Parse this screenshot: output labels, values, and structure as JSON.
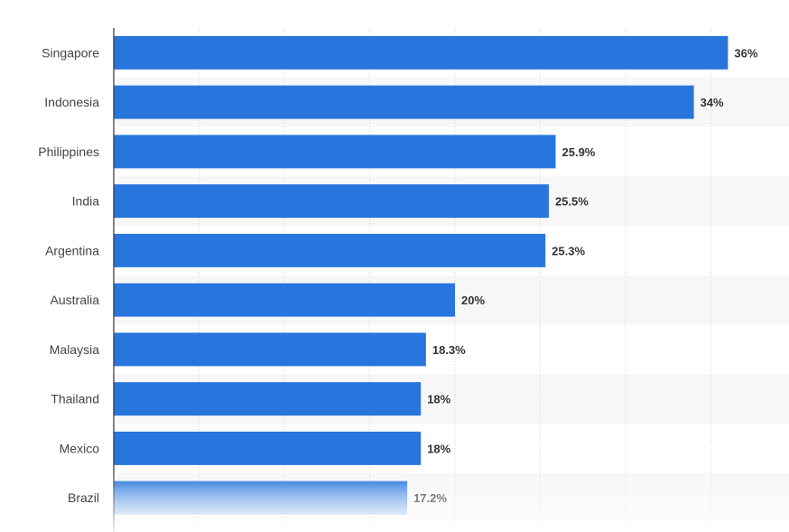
{
  "colors": {
    "bar": "#2876dd",
    "band": "#f7f7f7",
    "grid": "#d4d4d4",
    "axis": "#333333"
  },
  "chart_data": {
    "type": "bar",
    "orientation": "horizontal",
    "categories": [
      "Singapore",
      "Indonesia",
      "Philippines",
      "India",
      "Argentina",
      "Australia",
      "Malaysia",
      "Thailand",
      "Mexico",
      "Brazil"
    ],
    "values": [
      36,
      34,
      25.9,
      25.5,
      25.3,
      20,
      18.3,
      18,
      18,
      17.2
    ],
    "value_labels": [
      "36%",
      "34%",
      "25.9%",
      "25.5%",
      "25.3%",
      "20%",
      "18.3%",
      "18%",
      "18%",
      "17.2%"
    ],
    "unit": "%",
    "xlim": [
      0,
      40
    ],
    "grid": true,
    "legend": "none"
  }
}
